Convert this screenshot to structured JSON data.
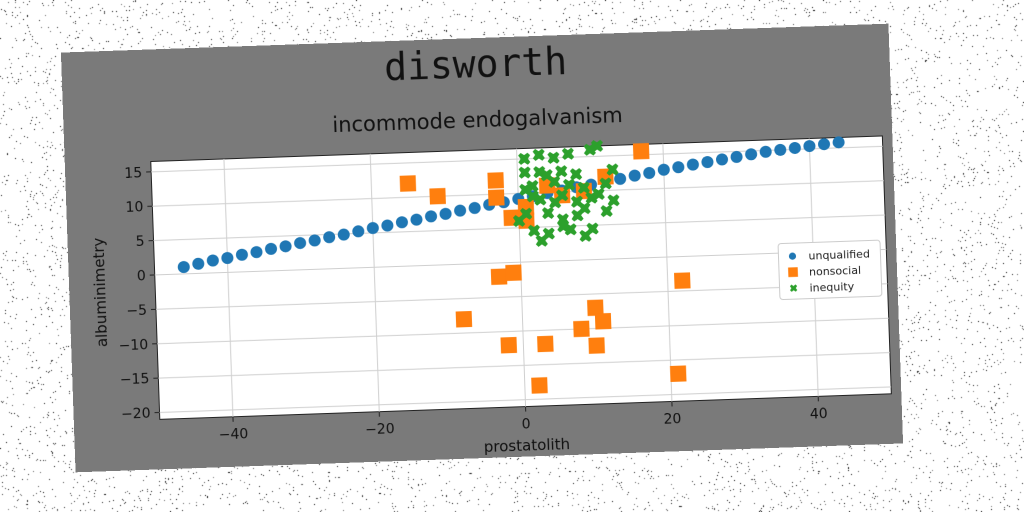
{
  "figure": {
    "suptitle": "disworth"
  },
  "chart_data": {
    "type": "scatter",
    "title": "incommode endogalvanism",
    "xlabel": "prostatolith",
    "ylabel": "albuminimetry",
    "xlim": [
      -50,
      50
    ],
    "ylim": [
      -21,
      16.5
    ],
    "xticks": [
      -40,
      -20,
      0,
      20,
      40
    ],
    "yticks": [
      -20,
      -15,
      -10,
      -5,
      0,
      5,
      10,
      15
    ],
    "grid": true,
    "legend_position": "center-right",
    "colors": {
      "unqualified": "#1f77b4",
      "nonsocial": "#ff7f0e",
      "inequity": "#2ca02c",
      "frame": "#7a7a7a"
    },
    "series": [
      {
        "name": "unqualified",
        "marker": "circle",
        "points": [
          [
            -46,
            1.0
          ],
          [
            -44,
            1.4
          ],
          [
            -42,
            1.8
          ],
          [
            -40,
            2.1
          ],
          [
            -38,
            2.5
          ],
          [
            -36,
            2.8
          ],
          [
            -34,
            3.2
          ],
          [
            -32,
            3.5
          ],
          [
            -30,
            3.9
          ],
          [
            -28,
            4.2
          ],
          [
            -26,
            4.6
          ],
          [
            -24,
            4.9
          ],
          [
            -22,
            5.3
          ],
          [
            -20,
            5.7
          ],
          [
            -18,
            6.0
          ],
          [
            -16,
            6.4
          ],
          [
            -14,
            6.7
          ],
          [
            -12,
            7.1
          ],
          [
            -10,
            7.4
          ],
          [
            -8,
            7.8
          ],
          [
            -6,
            8.1
          ],
          [
            -4,
            8.5
          ],
          [
            -2,
            8.8
          ],
          [
            0,
            9.2
          ],
          [
            2,
            9.5
          ],
          [
            4,
            9.9
          ],
          [
            6,
            10.2
          ],
          [
            8,
            10.6
          ],
          [
            10,
            10.9
          ],
          [
            12,
            11.3
          ],
          [
            14,
            11.6
          ],
          [
            16,
            12.0
          ],
          [
            18,
            12.3
          ],
          [
            20,
            12.7
          ],
          [
            22,
            13.0
          ],
          [
            24,
            13.3
          ],
          [
            26,
            13.6
          ],
          [
            28,
            13.9
          ],
          [
            30,
            14.2
          ],
          [
            32,
            14.5
          ],
          [
            34,
            14.8
          ],
          [
            36,
            15.0
          ],
          [
            38,
            15.2
          ],
          [
            40,
            15.4
          ],
          [
            42,
            15.6
          ],
          [
            44,
            15.8
          ]
        ]
      },
      {
        "name": "nonsocial",
        "marker": "square",
        "points": [
          [
            -15,
            12
          ],
          [
            -11,
            10
          ],
          [
            -3,
            12
          ],
          [
            -3,
            9.5
          ],
          [
            -1,
            6.5
          ],
          [
            1,
            8
          ],
          [
            1,
            6
          ],
          [
            4,
            11
          ],
          [
            6,
            9.5
          ],
          [
            9,
            10
          ],
          [
            12,
            12
          ],
          [
            17,
            15.5
          ],
          [
            -3,
            -2
          ],
          [
            -1,
            -1.5
          ],
          [
            22,
            -3.5
          ],
          [
            -8,
            -8
          ],
          [
            -2,
            -12
          ],
          [
            3,
            -12
          ],
          [
            8,
            -10
          ],
          [
            10,
            -7
          ],
          [
            11,
            -9
          ],
          [
            10,
            -12.5
          ],
          [
            2,
            -18
          ],
          [
            21,
            -17
          ]
        ]
      },
      {
        "name": "inequity",
        "marker": "x",
        "points": [
          [
            1,
            15
          ],
          [
            3,
            15.5
          ],
          [
            5,
            15
          ],
          [
            7,
            15.5
          ],
          [
            10,
            16
          ],
          [
            11,
            16.5
          ],
          [
            1,
            13
          ],
          [
            3,
            13
          ],
          [
            4,
            12.5
          ],
          [
            6,
            13
          ],
          [
            8,
            12.5
          ],
          [
            2,
            11
          ],
          [
            5,
            11.5
          ],
          [
            7,
            11
          ],
          [
            9,
            10.5
          ],
          [
            12,
            11
          ],
          [
            13,
            13
          ],
          [
            3,
            9
          ],
          [
            5,
            8.5
          ],
          [
            6,
            9.5
          ],
          [
            8,
            8.5
          ],
          [
            10,
            9
          ],
          [
            11,
            9.5
          ],
          [
            13,
            8.5
          ],
          [
            1,
            7
          ],
          [
            4,
            7
          ],
          [
            6,
            6
          ],
          [
            8,
            6.5
          ],
          [
            9,
            7.5
          ],
          [
            12,
            7
          ],
          [
            2,
            4.5
          ],
          [
            4,
            4
          ],
          [
            7,
            4.5
          ],
          [
            9,
            3.5
          ],
          [
            10,
            4.5
          ],
          [
            3,
            3
          ],
          [
            6,
            5
          ],
          [
            0,
            6
          ],
          [
            2,
            9.5
          ],
          [
            1,
            10.5
          ]
        ]
      }
    ]
  }
}
